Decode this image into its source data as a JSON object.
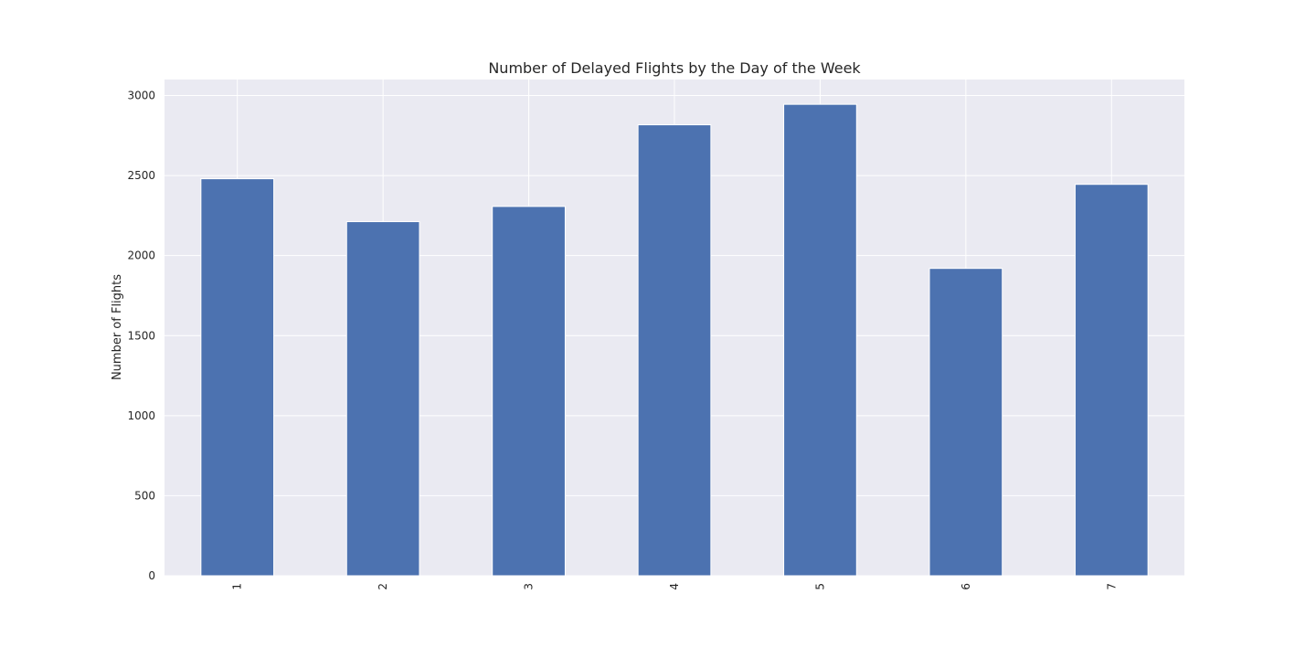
{
  "chart_data": {
    "type": "bar",
    "title": "Number of Delayed Flights by the Day of the Week",
    "xlabel": "",
    "ylabel": "Number of Flights",
    "categories": [
      "1",
      "2",
      "3",
      "4",
      "5",
      "6",
      "7"
    ],
    "values": [
      2480,
      2212,
      2307,
      2817,
      2945,
      1920,
      2445
    ],
    "ylim": [
      0,
      3100
    ],
    "yticks": [
      0,
      500,
      1000,
      1500,
      2000,
      2500,
      3000
    ],
    "grid": true,
    "colors": {
      "bar": "#4c72b0",
      "background": "#eaeaf2",
      "grid": "#ffffff"
    }
  }
}
